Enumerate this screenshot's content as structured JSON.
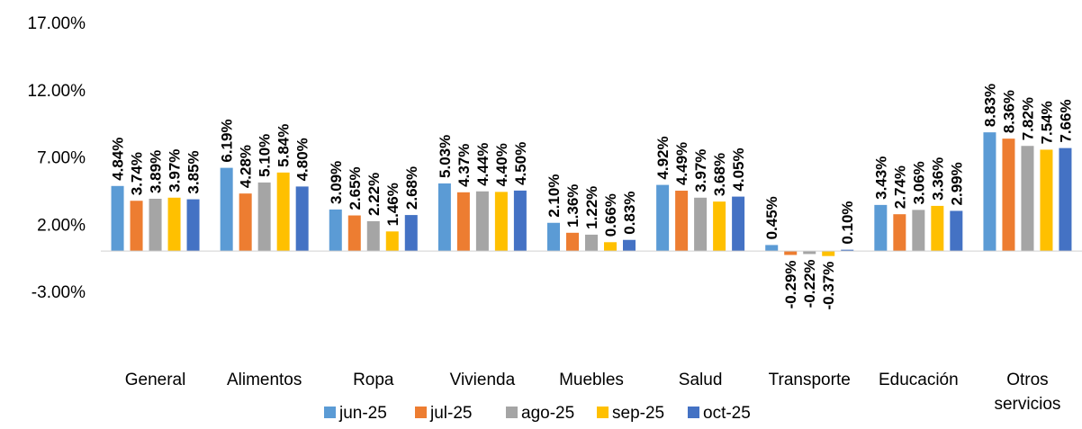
{
  "chart_data": {
    "type": "bar",
    "categories": [
      "General",
      "Alimentos",
      "Ropa",
      "Vivienda",
      "Muebles",
      "Salud",
      "Transporte",
      "Educación",
      [
        "Otros",
        "servicios"
      ]
    ],
    "series": [
      {
        "name": "jun-25",
        "color": "#5B9BD5",
        "values": [
          4.84,
          6.19,
          3.09,
          5.03,
          2.1,
          4.92,
          0.45,
          3.43,
          8.83
        ],
        "labels": [
          "4.84%",
          "6.19%",
          "3.09%",
          "5.03%",
          "2.10%",
          "4.92%",
          "0.45%",
          "3.43%",
          "8.83%"
        ]
      },
      {
        "name": "jul-25",
        "color": "#ED7D31",
        "values": [
          3.74,
          4.28,
          2.65,
          4.37,
          1.36,
          4.49,
          -0.29,
          2.74,
          8.36
        ],
        "labels": [
          "3.74%",
          "4.28%",
          "2.65%",
          "4.37%",
          "1.36%",
          "4.49%",
          "-0.29%",
          "2.74%",
          "8.36%"
        ]
      },
      {
        "name": "ago-25",
        "color": "#A5A5A5",
        "values": [
          3.89,
          5.1,
          2.22,
          4.44,
          1.22,
          3.97,
          -0.22,
          3.06,
          7.82
        ],
        "labels": [
          "3.89%",
          "5.10%",
          "2.22%",
          "4.44%",
          "1.22%",
          "3.97%",
          "-0.22%",
          "3.06%",
          "7.82%"
        ]
      },
      {
        "name": "sep-25",
        "color": "#FFC000",
        "values": [
          3.97,
          5.84,
          1.46,
          4.4,
          0.66,
          3.68,
          -0.37,
          3.36,
          7.54
        ],
        "labels": [
          "3.97%",
          "5.84%",
          "1.46%",
          "4.40%",
          "0.66%",
          "3.68%",
          "-0.37%",
          "3.36%",
          "7.54%"
        ]
      },
      {
        "name": "oct-25",
        "color": "#4472C4",
        "values": [
          3.85,
          4.8,
          2.68,
          4.5,
          0.83,
          4.05,
          0.1,
          2.99,
          7.66
        ],
        "labels": [
          "3.85%",
          "4.80%",
          "2.68%",
          "4.50%",
          "0.83%",
          "4.05%",
          "0.10%",
          "2.99%",
          "7.66%"
        ]
      }
    ],
    "y_ticks": [
      "17.00%",
      "12.00%",
      "7.00%",
      "2.00%",
      "-3.00%"
    ],
    "ylim": [
      -3,
      17
    ],
    "grid": false,
    "legend": "bottom",
    "title": "",
    "xlabel": "",
    "ylabel": ""
  }
}
